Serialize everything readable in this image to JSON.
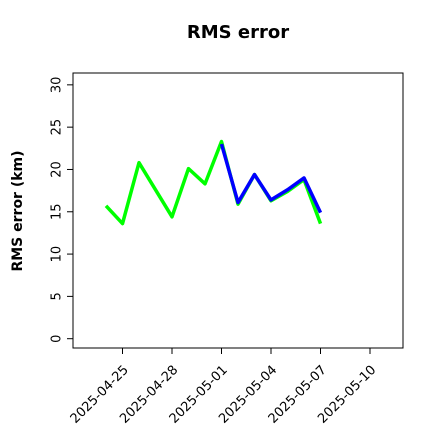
{
  "chart_data": {
    "type": "line",
    "title": "RMS error",
    "y_label": "RMS error (km)",
    "x": [
      "2025-04-24",
      "2025-04-25",
      "2025-04-26",
      "2025-04-28",
      "2025-04-29",
      "2025-04-30",
      "2025-05-01",
      "2025-05-02",
      "2025-05-03",
      "2025-05-04",
      "2025-05-05",
      "2025-05-06",
      "2025-05-07"
    ],
    "series": [
      {
        "color": "#00ff00",
        "values": [
          15.7,
          13.6,
          20.8,
          14.4,
          20.1,
          18.3,
          23.3,
          15.9,
          19.4,
          16.3,
          17.4,
          18.8,
          13.6
        ]
      },
      {
        "color": "#0000ff",
        "values": [
          null,
          null,
          null,
          null,
          null,
          null,
          23.0,
          16.1,
          19.4,
          16.4,
          17.6,
          19.0,
          14.9
        ]
      }
    ],
    "xlim": [
      "2025-04-22",
      "2025-05-12"
    ],
    "xticks": [
      "2025-04-25",
      "2025-04-28",
      "2025-05-01",
      "2025-05-04",
      "2025-05-07",
      "2025-05-10"
    ],
    "xtick_colors": [
      "#000000",
      "#000000",
      "#228b22",
      "#000000",
      "#000000",
      "#000000"
    ],
    "ylim": [
      -1.1,
      31.4
    ],
    "yticks": [
      0,
      5,
      10,
      15,
      20,
      25,
      30
    ],
    "grid": false
  }
}
